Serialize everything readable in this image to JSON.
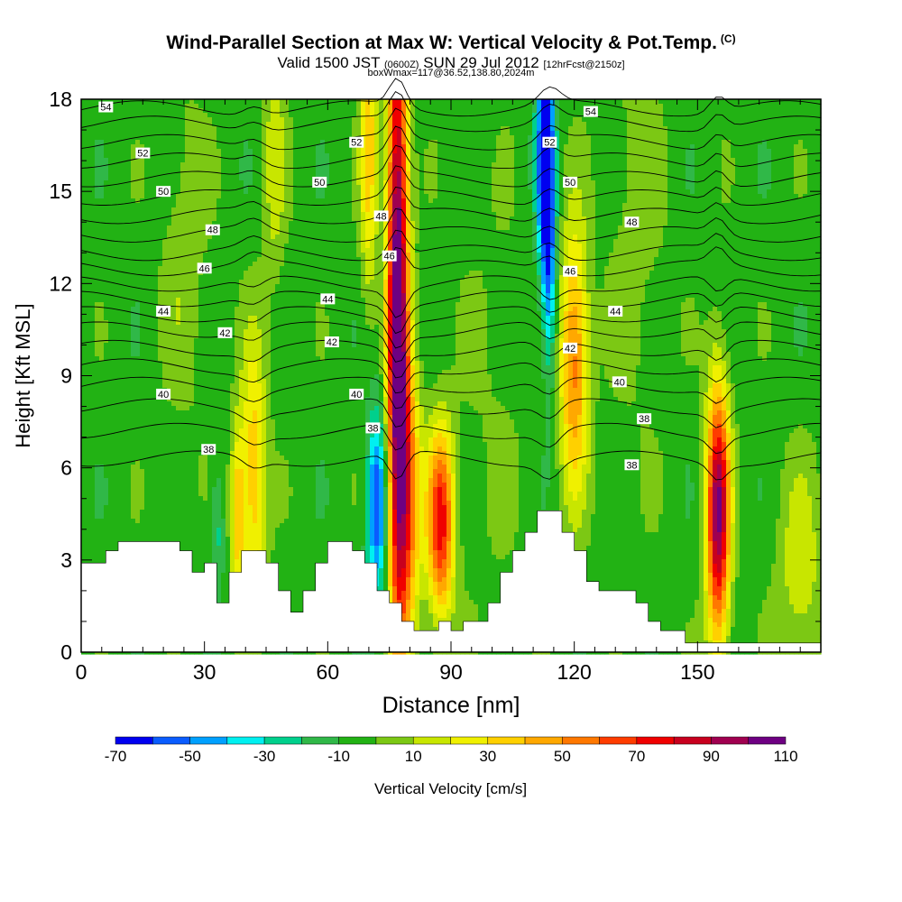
{
  "title": {
    "main": "Wind-Parallel Section at Max W: Vertical Velocity & Pot.Temp.",
    "mark": "(C)"
  },
  "subtitle": {
    "valid": "Valid 1500 JST",
    "utc": "(0600Z)",
    "date": "SUN 29 Jul 2012",
    "fcst": "[12hrFcst@2150z]",
    "box": "boxWmax=117@36.52,138.80,2024m"
  },
  "chart_data": {
    "type": "heatmap",
    "xlabel": "Distance [nm]",
    "ylabel": "Height [Kft MSL]",
    "xlim": [
      0,
      180
    ],
    "ylim": [
      0,
      18
    ],
    "xticks": [
      0,
      30,
      60,
      90,
      120,
      150
    ],
    "yticks": [
      0,
      3,
      6,
      9,
      12,
      15,
      18
    ],
    "colorbar": {
      "label": "Vertical Velocity [cm/s]",
      "levels": [
        -70,
        -60,
        -50,
        -40,
        -30,
        -20,
        -10,
        0,
        10,
        20,
        30,
        40,
        50,
        60,
        70,
        80,
        90,
        100,
        110
      ],
      "tick_labels": [
        "-70",
        "-50",
        "-30",
        "-10",
        "10",
        "30",
        "50",
        "70",
        "90",
        "110"
      ],
      "colors": [
        "#0000f0",
        "#0a5cff",
        "#00a0ff",
        "#00f0f0",
        "#00d08c",
        "#30b848",
        "#22b214",
        "#7cc814",
        "#c8e600",
        "#f0f000",
        "#ffd000",
        "#ffa800",
        "#ff7800",
        "#ff3c00",
        "#f00000",
        "#c8001e",
        "#a00050",
        "#6e0082"
      ]
    },
    "background_w": -5,
    "terrain_kft": [
      [
        0,
        2.9
      ],
      [
        6,
        2.9
      ],
      [
        6,
        3.3
      ],
      [
        9,
        3.3
      ],
      [
        9,
        3.6
      ],
      [
        15,
        3.6
      ],
      [
        24,
        3.6
      ],
      [
        24,
        3.3
      ],
      [
        27,
        3.3
      ],
      [
        27,
        2.6
      ],
      [
        30,
        2.6
      ],
      [
        30,
        2.9
      ],
      [
        33,
        2.9
      ],
      [
        33,
        1.6
      ],
      [
        36,
        1.6
      ],
      [
        36,
        2.6
      ],
      [
        39,
        2.6
      ],
      [
        39,
        3.3
      ],
      [
        45,
        3.3
      ],
      [
        45,
        2.9
      ],
      [
        48,
        2.9
      ],
      [
        48,
        2.0
      ],
      [
        51,
        2.0
      ],
      [
        51,
        1.3
      ],
      [
        54,
        1.3
      ],
      [
        54,
        2.0
      ],
      [
        57,
        2.0
      ],
      [
        57,
        2.9
      ],
      [
        60,
        2.9
      ],
      [
        60,
        3.6
      ],
      [
        66,
        3.6
      ],
      [
        66,
        3.3
      ],
      [
        69,
        3.3
      ],
      [
        69,
        2.9
      ],
      [
        72,
        2.9
      ],
      [
        72,
        2.0
      ],
      [
        75,
        2.0
      ],
      [
        75,
        1.6
      ],
      [
        78,
        1.6
      ],
      [
        78,
        1.0
      ],
      [
        81,
        1.0
      ],
      [
        81,
        0.7
      ],
      [
        87,
        0.7
      ],
      [
        87,
        1.0
      ],
      [
        90,
        1.0
      ],
      [
        90,
        0.7
      ],
      [
        93,
        0.7
      ],
      [
        93,
        1.0
      ],
      [
        99,
        1.0
      ],
      [
        99,
        1.6
      ],
      [
        102,
        1.6
      ],
      [
        102,
        2.6
      ],
      [
        105,
        2.6
      ],
      [
        105,
        3.3
      ],
      [
        108,
        3.3
      ],
      [
        108,
        3.9
      ],
      [
        111,
        3.9
      ],
      [
        111,
        4.6
      ],
      [
        117,
        4.6
      ],
      [
        117,
        3.9
      ],
      [
        120,
        3.9
      ],
      [
        120,
        3.3
      ],
      [
        123,
        3.3
      ],
      [
        123,
        2.3
      ],
      [
        126,
        2.3
      ],
      [
        126,
        2.0
      ],
      [
        135,
        2.0
      ],
      [
        135,
        1.6
      ],
      [
        138,
        1.6
      ],
      [
        138,
        1.0
      ],
      [
        141,
        1.0
      ],
      [
        141,
        0.7
      ],
      [
        147,
        0.7
      ],
      [
        147,
        0.3
      ],
      [
        180,
        0.3
      ]
    ],
    "w_features": [
      {
        "x": 77,
        "y": 11.5,
        "sx": 1.8,
        "sy": 7.5,
        "amp": 120
      },
      {
        "x": 79.5,
        "y": 5.0,
        "sx": 2.2,
        "sy": 3.2,
        "amp": 60
      },
      {
        "x": 87.5,
        "y": 4.2,
        "sx": 2.3,
        "sy": 2.2,
        "amp": 80
      },
      {
        "x": 155,
        "y": 4.5,
        "sx": 2.0,
        "sy": 3.0,
        "amp": 105
      },
      {
        "x": 120,
        "y": 9.5,
        "sx": 2.5,
        "sy": 3.0,
        "amp": 60
      },
      {
        "x": 42,
        "y": 5.8,
        "sx": 2.2,
        "sy": 3.0,
        "amp": 45
      },
      {
        "x": 38,
        "y": 4.5,
        "sx": 1.2,
        "sy": 2.0,
        "amp": 40
      },
      {
        "x": 70,
        "y": 16.5,
        "sx": 1.5,
        "sy": 3.5,
        "amp": 40
      },
      {
        "x": 47,
        "y": 16.0,
        "sx": 2.0,
        "sy": 3.0,
        "amp": 20
      },
      {
        "x": 113,
        "y": 16.2,
        "sx": 1.5,
        "sy": 2.8,
        "amp": -75
      },
      {
        "x": 114,
        "y": 12.0,
        "sx": 1.2,
        "sy": 2.5,
        "amp": -35
      },
      {
        "x": 72,
        "y": 4.8,
        "sx": 1.8,
        "sy": 2.2,
        "amp": -55
      },
      {
        "x": 33,
        "y": 4.0,
        "sx": 1.2,
        "sy": 1.5,
        "amp": -20
      },
      {
        "x": 25,
        "y": 13.0,
        "sx": 4.0,
        "sy": 4.0,
        "amp": 12
      },
      {
        "x": 135,
        "y": 14.0,
        "sx": 5.0,
        "sy": 5.0,
        "amp": 10
      },
      {
        "x": 175,
        "y": 2.5,
        "sx": 4.0,
        "sy": 2.5,
        "amp": 22
      },
      {
        "x": 100,
        "y": 8.0,
        "sx": 6.0,
        "sy": 5.0,
        "amp": 6
      }
    ],
    "theta_contours": [
      {
        "value": 36,
        "y": 6.3
      },
      {
        "value": 37,
        "y": 7.2
      },
      {
        "value": 38,
        "y": 8.0
      },
      {
        "value": 39,
        "y": 8.7
      },
      {
        "value": 40,
        "y": 9.3
      },
      {
        "value": 41,
        "y": 9.9
      },
      {
        "value": 42,
        "y": 10.5
      },
      {
        "value": 43,
        "y": 11.0
      },
      {
        "value": 44,
        "y": 11.5
      },
      {
        "value": 45,
        "y": 12.0
      },
      {
        "value": 46,
        "y": 12.5
      },
      {
        "value": 47,
        "y": 13.0
      },
      {
        "value": 48,
        "y": 13.6
      },
      {
        "value": 49,
        "y": 14.2
      },
      {
        "value": 50,
        "y": 14.8
      },
      {
        "value": 51,
        "y": 15.4
      },
      {
        "value": 52,
        "y": 16.0
      },
      {
        "value": 53,
        "y": 16.6
      },
      {
        "value": 54,
        "y": 17.2
      },
      {
        "value": 55,
        "y": 17.7
      }
    ],
    "contour_labels": [
      {
        "text": "54",
        "x": 6,
        "y": 17.75
      },
      {
        "text": "52",
        "x": 15,
        "y": 16.25
      },
      {
        "text": "50",
        "x": 20,
        "y": 15.0
      },
      {
        "text": "48",
        "x": 32,
        "y": 13.75
      },
      {
        "text": "46",
        "x": 30,
        "y": 12.5
      },
      {
        "text": "44",
        "x": 20,
        "y": 11.1
      },
      {
        "text": "42",
        "x": 35,
        "y": 10.4
      },
      {
        "text": "40",
        "x": 20,
        "y": 8.4
      },
      {
        "text": "38",
        "x": 31,
        "y": 6.6
      },
      {
        "text": "50",
        "x": 58,
        "y": 15.3
      },
      {
        "text": "44",
        "x": 60,
        "y": 11.5
      },
      {
        "text": "42",
        "x": 61,
        "y": 10.1
      },
      {
        "text": "40",
        "x": 67,
        "y": 8.4
      },
      {
        "text": "52",
        "x": 67,
        "y": 16.6
      },
      {
        "text": "48",
        "x": 73,
        "y": 14.2
      },
      {
        "text": "46",
        "x": 75,
        "y": 12.9
      },
      {
        "text": "38",
        "x": 71,
        "y": 7.3
      },
      {
        "text": "52",
        "x": 114,
        "y": 16.6
      },
      {
        "text": "50",
        "x": 119,
        "y": 15.3
      },
      {
        "text": "46",
        "x": 119,
        "y": 12.4
      },
      {
        "text": "42",
        "x": 119,
        "y": 9.9
      },
      {
        "text": "54",
        "x": 124,
        "y": 17.6
      },
      {
        "text": "48",
        "x": 134,
        "y": 14.0
      },
      {
        "text": "44",
        "x": 130,
        "y": 11.1
      },
      {
        "text": "40",
        "x": 131,
        "y": 8.8
      },
      {
        "text": "38",
        "x": 137,
        "y": 7.6
      },
      {
        "text": "38",
        "x": 134,
        "y": 6.1
      }
    ]
  }
}
